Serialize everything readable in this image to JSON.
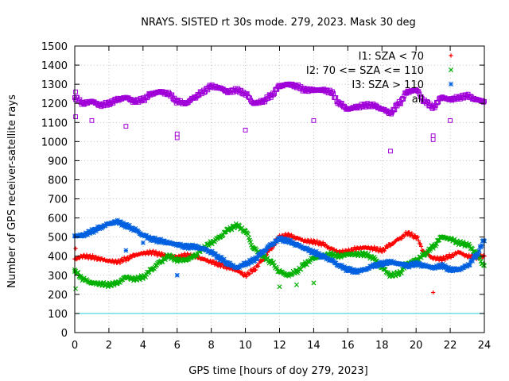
{
  "chart_data": {
    "type": "scatter",
    "title": "NRAYS. SISTED rt 30s mode. 279, 2023. Mask 30 deg",
    "xlabel": "GPS time [hours of doy 279, 2023]",
    "ylabel": "Number of GPS receiver-satellite rays",
    "xlim": [
      0,
      24
    ],
    "ylim": [
      0,
      1500
    ],
    "x_ticks": [
      0,
      2,
      4,
      6,
      8,
      10,
      12,
      14,
      16,
      18,
      20,
      22,
      24
    ],
    "y_ticks": [
      0,
      100,
      200,
      300,
      400,
      500,
      600,
      700,
      800,
      900,
      1000,
      1100,
      1200,
      1300,
      1400,
      1500
    ],
    "legend_position": "top-right",
    "series": [
      {
        "name": "I1: SZA < 70",
        "marker": "+",
        "color": "#ff0000",
        "x": [
          0,
          0.5,
          1,
          1.5,
          2,
          2.5,
          3,
          3.5,
          4,
          4.5,
          5,
          5.5,
          6,
          6.5,
          7,
          7.5,
          8,
          8.5,
          9,
          9.5,
          10,
          10.5,
          11,
          11.5,
          12,
          12.5,
          13,
          13.5,
          14,
          14.5,
          15,
          15.5,
          16,
          16.5,
          17,
          17.5,
          18,
          18.5,
          19,
          19.5,
          20,
          20.5,
          21,
          21.5,
          22,
          22.5,
          23,
          23.5,
          24
        ],
        "y": [
          385,
          400,
          395,
          385,
          375,
          370,
          385,
          405,
          415,
          420,
          410,
          400,
          395,
          405,
          400,
          385,
          370,
          355,
          340,
          325,
          300,
          330,
          380,
          440,
          500,
          510,
          495,
          480,
          475,
          465,
          440,
          420,
          425,
          440,
          445,
          440,
          430,
          460,
          490,
          520,
          500,
          420,
          390,
          385,
          400,
          420,
          400,
          395,
          400
        ],
        "outliers_x": [
          0.05,
          21.0
        ],
        "outliers_y": [
          440,
          210
        ]
      },
      {
        "name": "I2: 70 <= SZA <= 110",
        "marker": "x",
        "color": "#00b000",
        "x": [
          0,
          0.5,
          1,
          1.5,
          2,
          2.5,
          3,
          3.5,
          4,
          4.5,
          5,
          5.5,
          6,
          6.5,
          7,
          7.5,
          8,
          8.5,
          9,
          9.5,
          10,
          10.5,
          11,
          11.5,
          12,
          12.5,
          13,
          13.5,
          14,
          14.5,
          15,
          15.5,
          16,
          16.5,
          17,
          17.5,
          18,
          18.5,
          19,
          19.5,
          20,
          20.5,
          21,
          21.5,
          22,
          22.5,
          23,
          23.5,
          24
        ],
        "y": [
          320,
          280,
          260,
          255,
          250,
          260,
          290,
          280,
          290,
          330,
          370,
          400,
          380,
          380,
          400,
          440,
          470,
          500,
          540,
          560,
          530,
          440,
          400,
          370,
          320,
          300,
          320,
          360,
          390,
          400,
          410,
          400,
          410,
          410,
          410,
          390,
          340,
          300,
          310,
          360,
          380,
          410,
          450,
          500,
          490,
          470,
          460,
          420,
          350
        ],
        "outliers_x": [
          0.05,
          12.0,
          13.0,
          14.0
        ],
        "outliers_y": [
          230,
          240,
          250,
          260
        ]
      },
      {
        "name": "I3: SZA > 110",
        "marker": "*",
        "color": "#0060e0",
        "x": [
          0,
          0.5,
          1,
          1.5,
          2,
          2.5,
          3,
          3.5,
          4,
          4.5,
          5,
          5.5,
          6,
          6.5,
          7,
          7.5,
          8,
          8.5,
          9,
          9.5,
          10,
          10.5,
          11,
          11.5,
          12,
          12.5,
          13,
          13.5,
          14,
          14.5,
          15,
          15.5,
          16,
          16.5,
          17,
          17.5,
          18,
          18.5,
          19,
          19.5,
          20,
          20.5,
          21,
          21.5,
          22,
          22.5,
          23,
          23.5,
          24
        ],
        "y": [
          505,
          510,
          530,
          550,
          570,
          580,
          560,
          540,
          510,
          490,
          480,
          470,
          460,
          450,
          450,
          440,
          420,
          390,
          360,
          340,
          360,
          380,
          420,
          460,
          490,
          480,
          460,
          440,
          420,
          400,
          380,
          350,
          330,
          320,
          330,
          350,
          360,
          370,
          360,
          350,
          360,
          350,
          340,
          350,
          330,
          330,
          350,
          400,
          480
        ],
        "outliers_x": [
          3.0,
          6.0,
          4.0
        ],
        "outliers_y": [
          430,
          300,
          470
        ]
      },
      {
        "name": "all",
        "marker": "square",
        "color": "#a000d8",
        "x": [
          0,
          0.5,
          1,
          1.5,
          2,
          2.5,
          3,
          3.5,
          4,
          4.5,
          5,
          5.5,
          6,
          6.5,
          7,
          7.5,
          8,
          8.5,
          9,
          9.5,
          10,
          10.5,
          11,
          11.5,
          12,
          12.5,
          13,
          13.5,
          14,
          14.5,
          15,
          15.5,
          16,
          16.5,
          17,
          17.5,
          18,
          18.5,
          19,
          19.5,
          20,
          20.5,
          21,
          21.5,
          22,
          22.5,
          23,
          23.5,
          24
        ],
        "y": [
          1230,
          1200,
          1210,
          1190,
          1200,
          1220,
          1230,
          1210,
          1220,
          1250,
          1260,
          1250,
          1210,
          1200,
          1230,
          1260,
          1290,
          1280,
          1260,
          1270,
          1250,
          1200,
          1210,
          1240,
          1290,
          1300,
          1290,
          1270,
          1270,
          1270,
          1260,
          1200,
          1170,
          1180,
          1190,
          1190,
          1170,
          1150,
          1200,
          1260,
          1270,
          1210,
          1180,
          1230,
          1220,
          1230,
          1240,
          1220,
          1210
        ],
        "outliers_x": [
          0.05,
          0.05,
          1.0,
          3.0,
          6.0,
          6.0,
          10.0,
          14.0,
          18.5,
          21.0,
          21.0,
          22.0
        ],
        "outliers_y": [
          1260,
          1130,
          1110,
          1080,
          1040,
          1020,
          1060,
          1110,
          950,
          1030,
          1010,
          1110
        ]
      }
    ],
    "reference_line": {
      "y": 100,
      "color": "#20d0e0"
    }
  }
}
